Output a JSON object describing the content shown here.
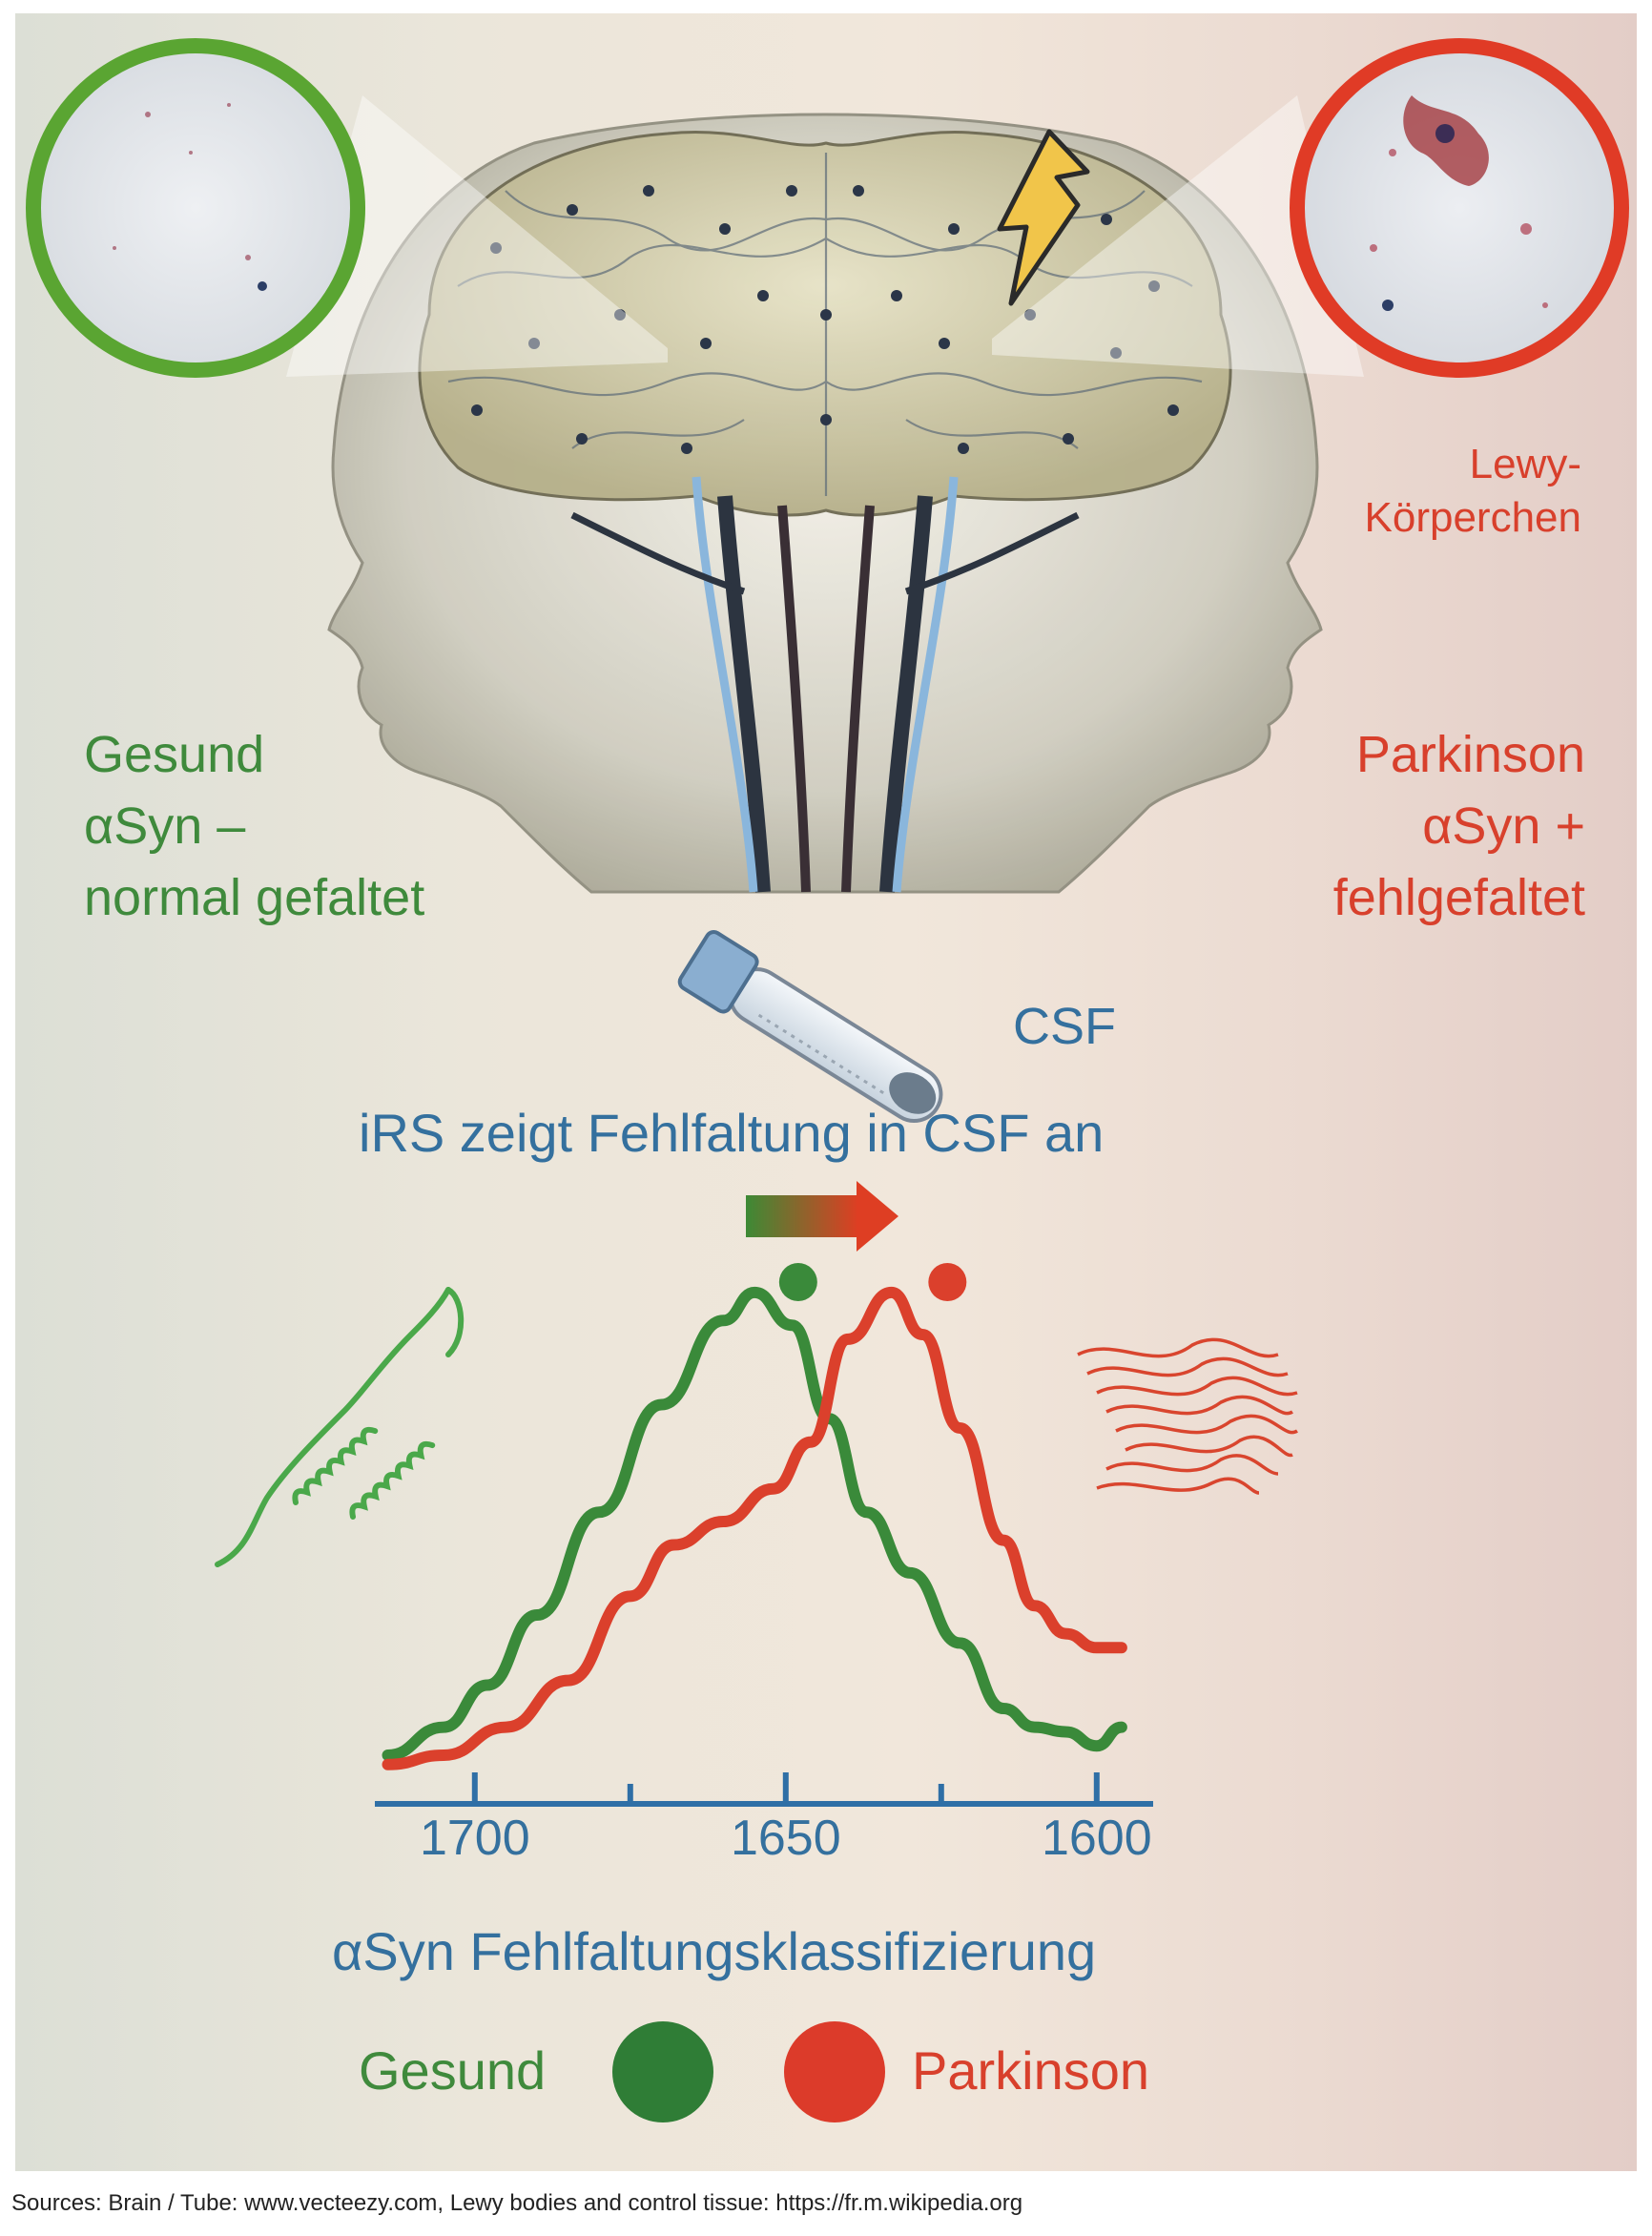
{
  "labels": {
    "left_title": [
      "Gesund",
      "αSyn –",
      "normal gefaltet"
    ],
    "right_title": [
      "Parkinson",
      "αSyn +",
      "fehlgefaltet"
    ],
    "lewy": [
      "Lewy-",
      "Körperchen"
    ],
    "csf": "CSF",
    "irs_line": "iRS zeigt Fehlfaltung in CSF an",
    "xaxis_title": "αSyn Fehlfaltungsklassifizierung",
    "legend_healthy": "Gesund",
    "legend_parkinson": "Parkinson",
    "sources": "Sources: Brain / Tube: www.vecteezy.com, Lewy bodies and control tissue: https://fr.m.wikipedia.org"
  },
  "colors": {
    "healthy": "#3a8a3a",
    "parkinson": "#db402c",
    "accent_blue": "#34709e",
    "legend_healthy_dot": "#2f7d36",
    "legend_parkinson_dot": "#dc3b2a"
  },
  "chart_data": {
    "type": "line",
    "x_reversed": true,
    "xlim": [
      1715,
      1590
    ],
    "ticks_major": [
      1700,
      1650,
      1600
    ],
    "ticks_minor": [
      1675,
      1625
    ],
    "xlabel": "αSyn Fehlfaltungsklassifizierung",
    "series": [
      {
        "name": "Gesund",
        "color": "#3a8a3a",
        "x": [
          1714,
          1705,
          1698,
          1690,
          1680,
          1670,
          1660,
          1655,
          1649,
          1643,
          1637,
          1630,
          1622,
          1615,
          1610,
          1605,
          1600,
          1596
        ],
        "y": [
          0.0,
          0.06,
          0.15,
          0.3,
          0.52,
          0.75,
          0.93,
          0.99,
          0.92,
          0.72,
          0.52,
          0.39,
          0.24,
          0.1,
          0.06,
          0.05,
          0.02,
          0.06
        ]
      },
      {
        "name": "Parkinson",
        "color": "#db402c",
        "x": [
          1714,
          1705,
          1695,
          1685,
          1675,
          1668,
          1660,
          1652,
          1646,
          1640,
          1633,
          1628,
          1622,
          1615,
          1610,
          1605,
          1600,
          1596
        ],
        "y": [
          -0.02,
          0.0,
          0.06,
          0.16,
          0.34,
          0.45,
          0.5,
          0.57,
          0.67,
          0.89,
          0.99,
          0.9,
          0.7,
          0.46,
          0.32,
          0.26,
          0.23,
          0.23
        ]
      }
    ],
    "peaks": [
      {
        "series": "Gesund",
        "x": 1648,
        "y": 1.0
      },
      {
        "series": "Parkinson",
        "x": 1624,
        "y": 1.0
      }
    ]
  }
}
